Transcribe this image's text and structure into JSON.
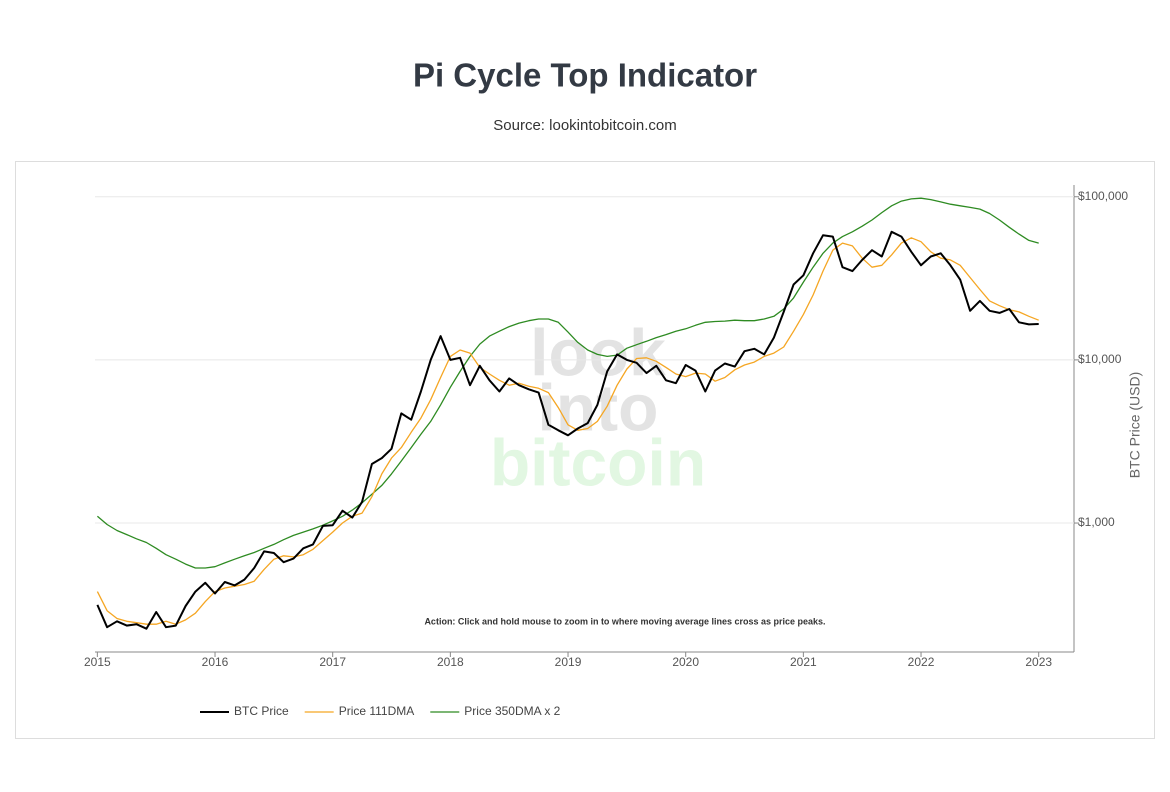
{
  "chart_data": {
    "type": "line",
    "title": "Pi Cycle Top Indicator",
    "subtitle": "Source: lookintobitcoin.com",
    "y_label": "BTC Price (USD)",
    "annotation": "Action: Click and hold mouse to zoom in to where moving average lines cross as price peaks.",
    "watermark": [
      "look",
      "into",
      "bitcoin"
    ],
    "log_y": true,
    "grid": true,
    "legend": "bottom",
    "xlim": [
      2014.98,
      2023.3
    ],
    "xticks": [
      2015,
      2016,
      2017,
      2018,
      2019,
      2020,
      2021,
      2022,
      2023
    ],
    "ylim": [
      162,
      110000
    ],
    "yticks": [
      {
        "value": 1000,
        "label": "$1,000"
      },
      {
        "value": 10000,
        "label": "$10,000"
      },
      {
        "value": 100000,
        "label": "$100,000"
      }
    ],
    "x": [
      2015,
      2015.083,
      2015.167,
      2015.25,
      2015.333,
      2015.417,
      2015.5,
      2015.583,
      2015.667,
      2015.75,
      2015.833,
      2015.917,
      2016,
      2016.083,
      2016.167,
      2016.25,
      2016.333,
      2016.417,
      2016.5,
      2016.583,
      2016.667,
      2016.75,
      2016.833,
      2016.917,
      2017,
      2017.083,
      2017.167,
      2017.25,
      2017.333,
      2017.417,
      2017.5,
      2017.583,
      2017.667,
      2017.75,
      2017.833,
      2017.917,
      2018,
      2018.083,
      2018.167,
      2018.25,
      2018.333,
      2018.417,
      2018.5,
      2018.583,
      2018.667,
      2018.75,
      2018.833,
      2018.917,
      2019,
      2019.083,
      2019.167,
      2019.25,
      2019.333,
      2019.417,
      2019.5,
      2019.583,
      2019.667,
      2019.75,
      2019.833,
      2019.917,
      2020,
      2020.083,
      2020.167,
      2020.25,
      2020.333,
      2020.417,
      2020.5,
      2020.583,
      2020.667,
      2020.75,
      2020.833,
      2020.917,
      2021,
      2021.083,
      2021.167,
      2021.25,
      2021.333,
      2021.417,
      2021.5,
      2021.583,
      2021.667,
      2021.75,
      2021.833,
      2021.917,
      2022,
      2022.083,
      2022.167,
      2022.25,
      2022.333,
      2022.417,
      2022.5,
      2022.583,
      2022.667,
      2022.75,
      2022.833,
      2022.917,
      2023
    ],
    "series": [
      {
        "name": "BTC Price",
        "color": "#000000",
        "width": 2,
        "values": [
          315,
          230,
          250,
          235,
          240,
          225,
          285,
          230,
          235,
          310,
          380,
          430,
          370,
          435,
          415,
          450,
          530,
          670,
          655,
          575,
          605,
          700,
          740,
          960,
          970,
          1190,
          1080,
          1350,
          2300,
          2500,
          2850,
          4700,
          4300,
          6400,
          10000,
          14000,
          10000,
          10300,
          7000,
          9200,
          7500,
          6400,
          7700,
          7000,
          6600,
          6300,
          4000,
          3700,
          3450,
          3800,
          4100,
          5300,
          8500,
          10800,
          10000,
          9600,
          8300,
          9200,
          7500,
          7200,
          9300,
          8600,
          6400,
          8600,
          9500,
          9100,
          11300,
          11700,
          10800,
          13700,
          19700,
          29000,
          33000,
          45000,
          58000,
          57000,
          37000,
          35000,
          41000,
          47000,
          43000,
          61000,
          57000,
          46000,
          38000,
          43000,
          45000,
          38000,
          31000,
          20000,
          23000,
          20000,
          19400,
          20500,
          17000,
          16500,
          16600
        ]
      },
      {
        "name": "Price 111DMA",
        "color": "#f5a623",
        "width": 1.3,
        "values": [
          380,
          290,
          260,
          250,
          245,
          240,
          240,
          250,
          240,
          255,
          280,
          330,
          380,
          400,
          410,
          420,
          440,
          520,
          600,
          630,
          620,
          640,
          690,
          780,
          880,
          1000,
          1100,
          1150,
          1450,
          2000,
          2500,
          2900,
          3600,
          4400,
          5700,
          7800,
          10500,
          11500,
          11000,
          9000,
          8200,
          7500,
          7000,
          7200,
          6900,
          6700,
          6300,
          5100,
          4000,
          3700,
          3800,
          4200,
          5200,
          7000,
          8800,
          10200,
          10300,
          9800,
          9000,
          8200,
          7900,
          8300,
          8200,
          7400,
          7800,
          8700,
          9300,
          9700,
          10500,
          11000,
          12000,
          15000,
          19000,
          25000,
          35000,
          47000,
          52000,
          50000,
          42000,
          37000,
          38000,
          44000,
          52000,
          56000,
          53000,
          46000,
          42000,
          41000,
          38000,
          32000,
          27000,
          23000,
          21500,
          20300,
          19700,
          18500,
          17500
        ]
      },
      {
        "name": "Price 350DMA x 2",
        "color": "#2e8b22",
        "width": 1.3,
        "values": [
          1100,
          980,
          900,
          850,
          800,
          760,
          700,
          640,
          600,
          560,
          530,
          530,
          540,
          570,
          600,
          630,
          660,
          700,
          740,
          790,
          840,
          880,
          920,
          970,
          1030,
          1100,
          1200,
          1330,
          1500,
          1700,
          2000,
          2400,
          2900,
          3500,
          4200,
          5300,
          6800,
          8500,
          10500,
          12500,
          14000,
          15000,
          16000,
          16800,
          17400,
          17800,
          17800,
          17000,
          14800,
          12800,
          11500,
          10800,
          10500,
          10700,
          11800,
          12400,
          13000,
          13700,
          14300,
          15000,
          15500,
          16300,
          17000,
          17200,
          17300,
          17500,
          17400,
          17400,
          17800,
          18500,
          20500,
          24000,
          30000,
          37000,
          45000,
          52000,
          57000,
          61000,
          66000,
          72000,
          80000,
          88000,
          94000,
          97000,
          98000,
          96000,
          93000,
          90000,
          88000,
          86000,
          84000,
          79000,
          72000,
          65000,
          59000,
          54000,
          52000
        ]
      }
    ]
  }
}
